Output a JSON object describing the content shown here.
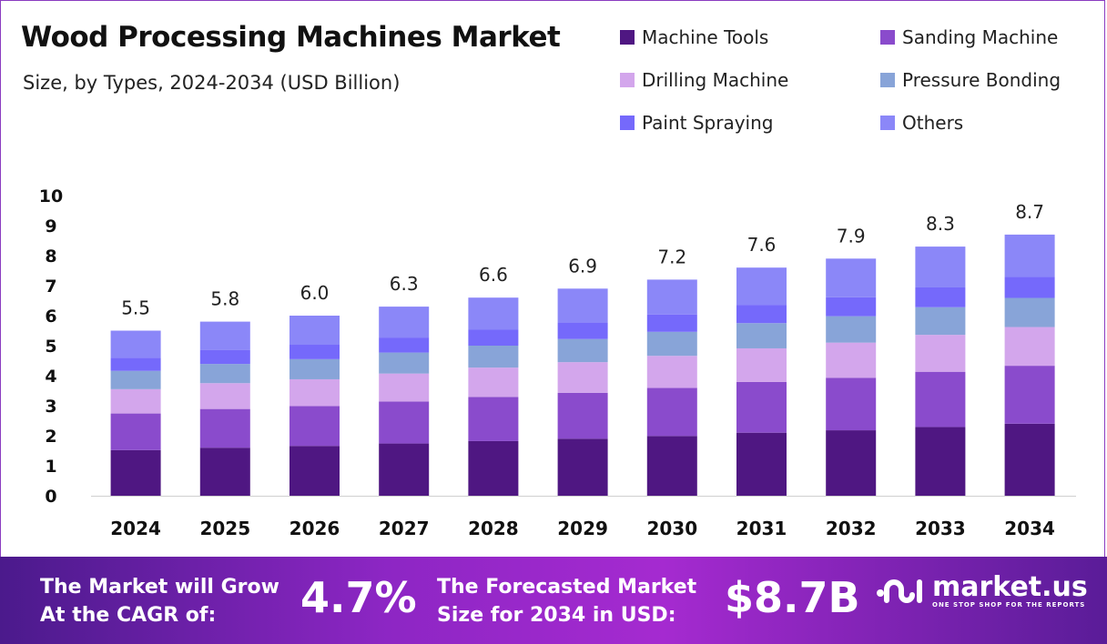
{
  "chart_data": {
    "type": "bar",
    "stacked": true,
    "title": "Wood Processing Machines Market",
    "subtitle": "Size, by Types, 2024-2034 (USD Billion)",
    "categories": [
      "2024",
      "2025",
      "2026",
      "2027",
      "2028",
      "2029",
      "2030",
      "2031",
      "2032",
      "2033",
      "2034"
    ],
    "totals": [
      "5.5",
      "5.8",
      "6.0",
      "6.3",
      "6.6",
      "6.9",
      "7.2",
      "7.6",
      "7.9",
      "8.3",
      "8.7"
    ],
    "series": [
      {
        "name": "Machine Tools",
        "color": "#4f1782",
        "values": [
          1.52,
          1.6,
          1.66,
          1.74,
          1.82,
          1.9,
          1.99,
          2.1,
          2.18,
          2.29,
          2.4
        ]
      },
      {
        "name": "Sanding Machine",
        "color": "#8a4bcc",
        "values": [
          1.22,
          1.29,
          1.33,
          1.4,
          1.47,
          1.53,
          1.6,
          1.69,
          1.75,
          1.84,
          1.93
        ]
      },
      {
        "name": "Drilling Machine",
        "color": "#d3a6ec",
        "values": [
          0.81,
          0.86,
          0.89,
          0.93,
          0.98,
          1.02,
          1.07,
          1.12,
          1.17,
          1.23,
          1.29
        ]
      },
      {
        "name": "Pressure Bonding",
        "color": "#88a4d8",
        "values": [
          0.61,
          0.64,
          0.67,
          0.7,
          0.73,
          0.77,
          0.8,
          0.84,
          0.88,
          0.92,
          0.97
        ]
      },
      {
        "name": "Paint Spraying",
        "color": "#7569fb",
        "values": [
          0.44,
          0.46,
          0.48,
          0.5,
          0.53,
          0.55,
          0.58,
          0.61,
          0.63,
          0.66,
          0.7
        ]
      },
      {
        "name": "Others",
        "color": "#8b87f8",
        "values": [
          0.9,
          0.95,
          0.97,
          1.03,
          1.07,
          1.13,
          1.16,
          1.24,
          1.29,
          1.36,
          1.41
        ]
      }
    ],
    "yticks": [
      "0",
      "1",
      "2",
      "3",
      "4",
      "5",
      "6",
      "7",
      "8",
      "9",
      "10"
    ],
    "ylim": [
      0,
      10
    ],
    "grid": false,
    "legend": "top-right"
  },
  "footer": {
    "cagr_label_1": "The Market will Grow",
    "cagr_label_2": "At the CAGR of:",
    "cagr_value": "4.7%",
    "size_label_1": "The Forecasted Market",
    "size_label_2": "Size for 2034 in USD:",
    "size_value": "$8.7B",
    "logo_name": "market.us",
    "logo_tagline": "ONE STOP SHOP FOR THE REPORTS"
  }
}
